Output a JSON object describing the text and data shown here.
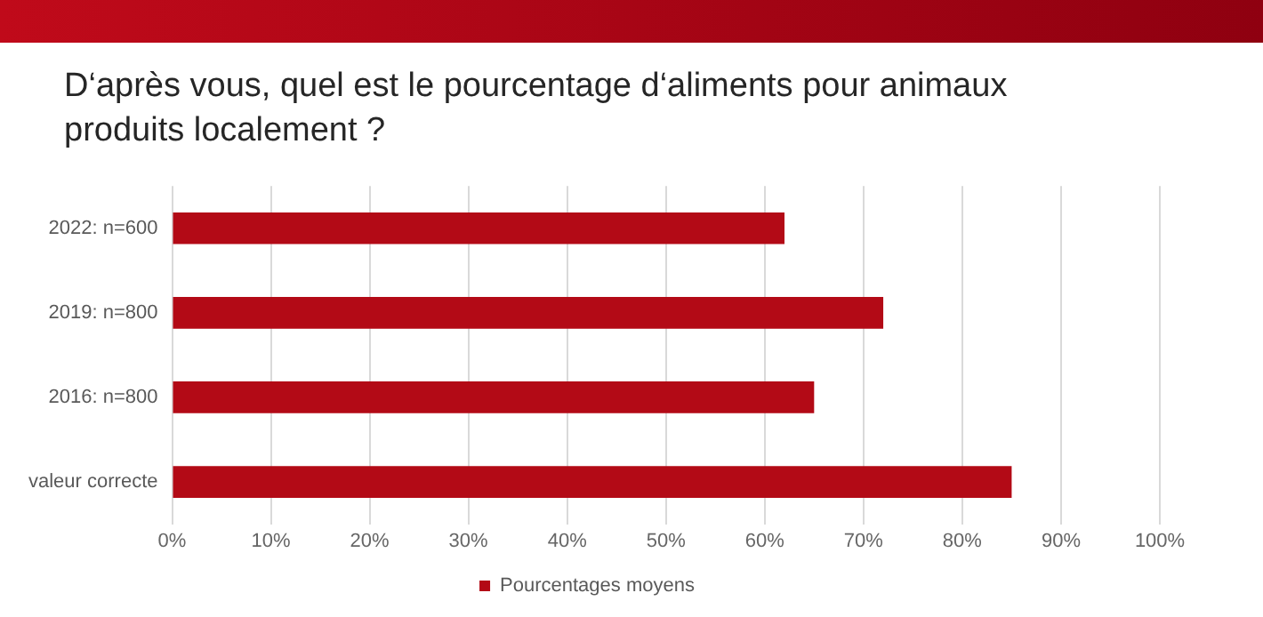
{
  "chart_data": {
    "type": "bar",
    "orientation": "horizontal",
    "title": "D‘après vous, quel est le pourcentage d‘aliments pour animaux produits localement ?",
    "categories": [
      "2022: n=600",
      "2019: n=800",
      "2016: n=800",
      "valeur correcte"
    ],
    "series": [
      {
        "name": "Pourcentages moyens",
        "color": "#b30a16",
        "values": [
          62,
          72,
          65,
          85
        ]
      }
    ],
    "xlim": [
      0,
      100
    ],
    "xticks": [
      {
        "value": 0,
        "label": "0%"
      },
      {
        "value": 10,
        "label": "10%"
      },
      {
        "value": 20,
        "label": "20%"
      },
      {
        "value": 30,
        "label": "30%"
      },
      {
        "value": 40,
        "label": "40%"
      },
      {
        "value": 50,
        "label": "50%"
      },
      {
        "value": 60,
        "label": "60%"
      },
      {
        "value": 70,
        "label": "70%"
      },
      {
        "value": 80,
        "label": "80%"
      },
      {
        "value": 90,
        "label": "90%"
      },
      {
        "value": 100,
        "label": "100%"
      }
    ],
    "grid": "x",
    "legend": "bottom"
  }
}
